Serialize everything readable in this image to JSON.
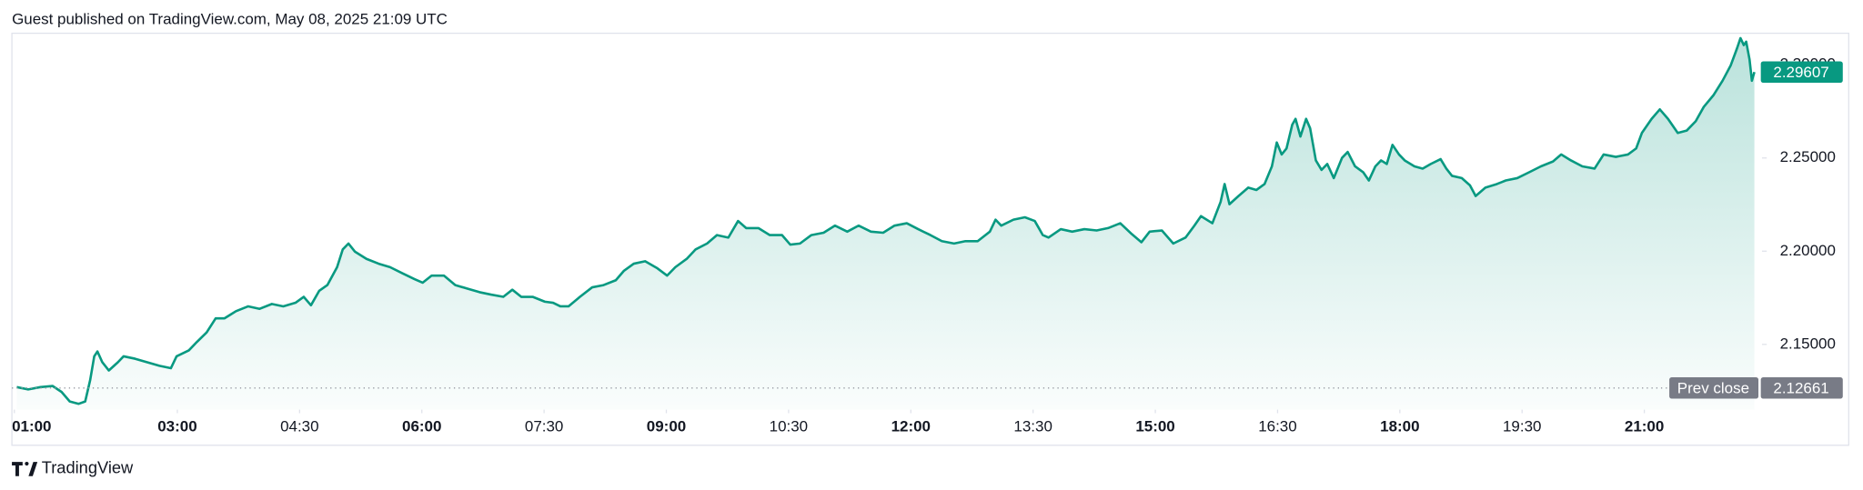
{
  "header": "Guest published on TradingView.com, May 08, 2025 21:09 UTC",
  "footer": "TradingView",
  "chart_data": {
    "type": "area",
    "color": "#089981",
    "x": [
      1.03,
      1.17,
      1.32,
      1.47,
      1.58,
      1.68,
      1.79,
      1.87,
      1.93,
      1.98,
      2.02,
      2.08,
      2.16,
      2.27,
      2.34,
      2.48,
      2.63,
      2.78,
      2.92,
      2.99,
      3.14,
      3.24,
      3.36,
      3.47,
      3.58,
      3.72,
      3.87,
      4.01,
      4.16,
      4.3,
      4.45,
      4.55,
      4.64,
      4.74,
      4.84,
      4.96,
      5.03,
      5.1,
      5.18,
      5.32,
      5.47,
      5.61,
      5.76,
      5.91,
      6.01,
      6.12,
      6.27,
      6.41,
      6.56,
      6.71,
      6.85,
      7.0,
      7.11,
      7.22,
      7.36,
      7.51,
      7.61,
      7.7,
      7.8,
      7.94,
      8.09,
      8.23,
      8.38,
      8.48,
      8.6,
      8.74,
      8.89,
      9.01,
      9.11,
      9.25,
      9.36,
      9.5,
      9.62,
      9.76,
      9.88,
      9.98,
      10.13,
      10.27,
      10.42,
      10.52,
      10.64,
      10.78,
      10.93,
      11.07,
      11.22,
      11.36,
      11.51,
      11.66,
      11.8,
      11.95,
      12.09,
      12.24,
      12.38,
      12.53,
      12.67,
      12.82,
      12.97,
      13.04,
      13.11,
      13.26,
      13.4,
      13.52,
      13.62,
      13.69,
      13.84,
      13.98,
      14.13,
      14.28,
      14.42,
      14.57,
      14.71,
      14.83,
      14.93,
      15.08,
      15.22,
      15.37,
      15.48,
      15.56,
      15.7,
      15.8,
      15.85,
      15.91,
      16.02,
      16.14,
      16.24,
      16.34,
      16.43,
      16.49,
      16.55,
      16.61,
      16.68,
      16.72,
      16.78,
      16.85,
      16.9,
      16.97,
      17.04,
      17.11,
      17.19,
      17.29,
      17.36,
      17.45,
      17.55,
      17.62,
      17.7,
      17.77,
      17.84,
      17.91,
      17.99,
      18.06,
      18.18,
      18.28,
      18.38,
      18.5,
      18.57,
      18.64,
      18.76,
      18.86,
      18.93,
      19.05,
      19.19,
      19.3,
      19.44,
      19.59,
      19.73,
      19.88,
      19.98,
      20.1,
      20.24,
      20.39,
      20.5,
      20.65,
      20.8,
      20.9,
      20.97,
      21.09,
      21.19,
      21.29,
      21.41,
      21.52,
      21.63,
      21.73,
      21.85,
      21.96,
      22.06,
      22.14,
      22.18,
      22.22,
      22.25,
      22.29,
      22.32,
      22.35
    ],
    "values": [
      2.1271,
      2.1258,
      2.1271,
      2.1277,
      2.1245,
      2.1194,
      2.1181,
      2.1194,
      2.1309,
      2.1436,
      2.1462,
      2.1404,
      2.136,
      2.1404,
      2.1436,
      2.1423,
      2.1404,
      2.1385,
      2.1372,
      2.1436,
      2.1468,
      2.1513,
      2.1564,
      2.164,
      2.164,
      2.1678,
      2.1704,
      2.1691,
      2.1717,
      2.1704,
      2.1723,
      2.1755,
      2.171,
      2.1787,
      2.1818,
      2.1914,
      2.201,
      2.2041,
      2.1997,
      2.1959,
      2.1933,
      2.1914,
      2.1882,
      2.185,
      2.1831,
      2.1869,
      2.1869,
      2.1818,
      2.1799,
      2.178,
      2.1767,
      2.1755,
      2.1793,
      2.1755,
      2.1755,
      2.1729,
      2.1723,
      2.1704,
      2.1704,
      2.1755,
      2.1806,
      2.1818,
      2.1844,
      2.1895,
      2.1933,
      2.1946,
      2.1908,
      2.1869,
      2.1914,
      2.1959,
      2.201,
      2.2041,
      2.2086,
      2.2073,
      2.2162,
      2.2124,
      2.2124,
      2.2086,
      2.2086,
      2.2035,
      2.2041,
      2.2086,
      2.2099,
      2.2137,
      2.2105,
      2.2137,
      2.2105,
      2.2099,
      2.2137,
      2.215,
      2.2118,
      2.2086,
      2.2054,
      2.2041,
      2.2054,
      2.2054,
      2.2105,
      2.2169,
      2.2137,
      2.2169,
      2.2182,
      2.2162,
      2.2086,
      2.2073,
      2.2118,
      2.2105,
      2.2118,
      2.2111,
      2.2124,
      2.215,
      2.2092,
      2.2048,
      2.2105,
      2.2111,
      2.2041,
      2.2073,
      2.2137,
      2.2188,
      2.215,
      2.2264,
      2.236,
      2.2252,
      2.2296,
      2.2341,
      2.2328,
      2.236,
      2.2455,
      2.2583,
      2.2519,
      2.2551,
      2.2678,
      2.271,
      2.2615,
      2.271,
      2.2659,
      2.2487,
      2.2436,
      2.2468,
      2.2392,
      2.25,
      2.2532,
      2.2455,
      2.2424,
      2.2379,
      2.2455,
      2.2487,
      2.2468,
      2.257,
      2.2519,
      2.2487,
      2.2455,
      2.2443,
      2.2468,
      2.2494,
      2.2443,
      2.2404,
      2.2392,
      2.2353,
      2.2296,
      2.2341,
      2.236,
      2.2379,
      2.2392,
      2.2424,
      2.2455,
      2.2481,
      2.2519,
      2.2487,
      2.2455,
      2.2443,
      2.2519,
      2.2506,
      2.2519,
      2.2551,
      2.2634,
      2.271,
      2.2761,
      2.271,
      2.2634,
      2.2647,
      2.2697,
      2.2774,
      2.2838,
      2.2914,
      2.2997,
      2.3092,
      2.3143,
      2.3105,
      2.3124,
      2.3029,
      2.2914,
      2.29607
    ],
    "xlim": [
      0.97,
      22.4
    ],
    "xticks": [
      {
        "value": 1,
        "label": "01:00"
      },
      {
        "value": 3,
        "label": "03:00"
      },
      {
        "value": 4.5,
        "label": "04:30"
      },
      {
        "value": 6,
        "label": "06:00"
      },
      {
        "value": 7.5,
        "label": "07:30"
      },
      {
        "value": 9,
        "label": "09:00"
      },
      {
        "value": 10.5,
        "label": "10:30"
      },
      {
        "value": 12,
        "label": "12:00"
      },
      {
        "value": 13.5,
        "label": "13:30"
      },
      {
        "value": 15,
        "label": "15:00"
      },
      {
        "value": 16.5,
        "label": "16:30"
      },
      {
        "value": 18,
        "label": "18:00"
      },
      {
        "value": 19.5,
        "label": "19:30"
      },
      {
        "value": 21,
        "label": "21:00"
      }
    ],
    "ylim": [
      2.115,
      2.3169
    ],
    "yticks": [
      {
        "value": 2.15,
        "label": "2.15000"
      },
      {
        "value": 2.2,
        "label": "2.20000"
      },
      {
        "value": 2.25,
        "label": "2.25000"
      },
      {
        "value": 2.3,
        "label": "2.30000"
      }
    ],
    "prev_close": 2.12661,
    "prev_close_label": "Prev close",
    "prev_close_color": "#787b86"
  }
}
